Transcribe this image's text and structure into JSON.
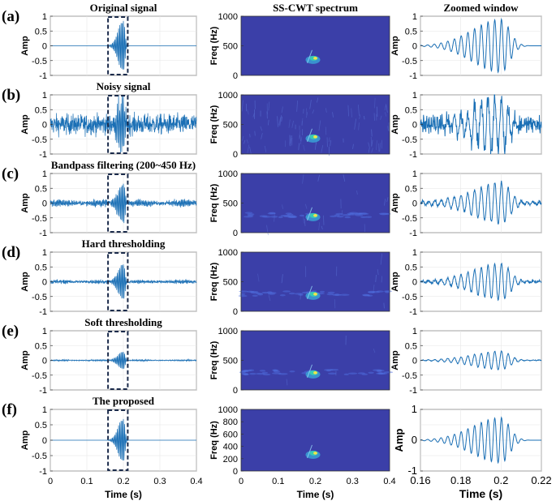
{
  "chart_data": {
    "type": "multi-panel",
    "rows": [
      {
        "tag": "(a)",
        "title": "Original signal",
        "method": "original",
        "noise": 0.0,
        "ripple": 0.0,
        "scale": 1.0,
        "box": true
      },
      {
        "tag": "(b)",
        "title": "Noisy signal",
        "method": "noisy",
        "noise": 0.18,
        "ripple": 0.0,
        "scale": 1.0,
        "box": true
      },
      {
        "tag": "(c)",
        "title": "Bandpass filtering (200~450 Hz)",
        "method": "bandpass",
        "noise": 0.035,
        "ripple": 0.09,
        "scale": 0.78,
        "box": true
      },
      {
        "tag": "(d)",
        "title": "Hard thresholding",
        "method": "hard",
        "noise": 0.025,
        "ripple": 0.04,
        "scale": 0.7,
        "box": true
      },
      {
        "tag": "(e)",
        "title": "Soft thresholding",
        "method": "soft",
        "noise": 0.008,
        "ripple": 0.02,
        "scale": 0.35,
        "box": true
      },
      {
        "tag": "(f)",
        "title": "The proposed",
        "method": "proposed",
        "noise": 0.0,
        "ripple": 0.0,
        "scale": 0.82,
        "box": true
      }
    ],
    "columns": [
      {
        "title": "",
        "type": "line",
        "ylabel": "Amp",
        "xlim": [
          0,
          0.4
        ],
        "ylim": [
          -1,
          1
        ],
        "yticks": [
          "1",
          "0.5",
          "0",
          "-0.5",
          "-1"
        ],
        "xticks": [
          "0",
          "0.1",
          "0.2",
          "0.3",
          "0.4"
        ],
        "xlabel": "Time (s)"
      },
      {
        "title": "SS-CWT spectrum",
        "type": "heatmap",
        "ylabel": "Freq (Hz)",
        "xlim": [
          0,
          0.4
        ],
        "ylim": [
          0,
          1000
        ],
        "yticks": [
          "1000",
          "500",
          "0"
        ],
        "yticks_last": [
          "1000",
          "800",
          "600",
          "400",
          "200",
          "0"
        ],
        "xticks": [
          "0",
          "0.1",
          "0.2",
          "0.3",
          "0.4"
        ],
        "xlabel": "Time (s)"
      },
      {
        "title": "Zoomed window",
        "type": "line",
        "ylabel": "Amp",
        "xlim": [
          0.16,
          0.22
        ],
        "ylim": [
          -1,
          1
        ],
        "yticks": [
          "1",
          "0.5",
          "0",
          "-0.5",
          "-1"
        ],
        "yticks_last": [
          "1",
          "0",
          "-1"
        ],
        "xticks": [
          "0.16",
          "0.18",
          "0.2",
          "0.22"
        ],
        "xlabel": "Time (s)"
      }
    ],
    "signal": {
      "center_time_s": 0.2,
      "frequency_hz": 300,
      "peak_amplitude": 0.9
    },
    "colors": {
      "line": "#1a6fb5",
      "box": "#1a2a4a",
      "heat_bg": "#3b3fa8",
      "heat_hot": "#f2e34a",
      "grid": "#e6e6e6"
    }
  }
}
